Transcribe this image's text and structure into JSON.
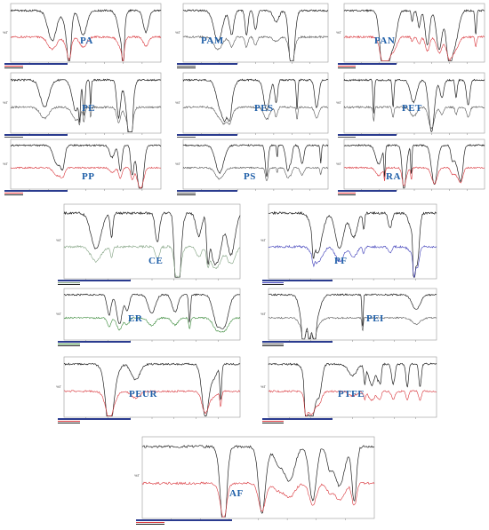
{
  "figure": {
    "panels": [
      {
        "label": "PA",
        "color": "#d9343a"
      },
      {
        "label": "PAM",
        "color": "#555555"
      },
      {
        "label": "PAN",
        "color": "#d9343a"
      },
      {
        "label": "PE",
        "color": "#555555"
      },
      {
        "label": "PES",
        "color": "#555555"
      },
      {
        "label": "PET",
        "color": "#555555"
      },
      {
        "label": "PP",
        "color": "#d9343a"
      },
      {
        "label": "PS",
        "color": "#555555"
      },
      {
        "label": "RA",
        "color": "#d9343a"
      },
      {
        "label": "CE",
        "color": "#7fa07f"
      },
      {
        "label": "PF",
        "color": "#3a3ab8"
      },
      {
        "label": "ER",
        "color": "#3a8a3a"
      },
      {
        "label": "PEI",
        "color": "#555555"
      },
      {
        "label": "PEUR",
        "color": "#d9343a"
      },
      {
        "label": "PTFE",
        "color": "#d9343a"
      },
      {
        "label": "AF",
        "color": "#d9343a"
      }
    ],
    "ytick": "%T"
  },
  "colors": {
    "label": "#1f5fa8",
    "spectrum": "#222222",
    "footer": "#2a3b8f"
  }
}
